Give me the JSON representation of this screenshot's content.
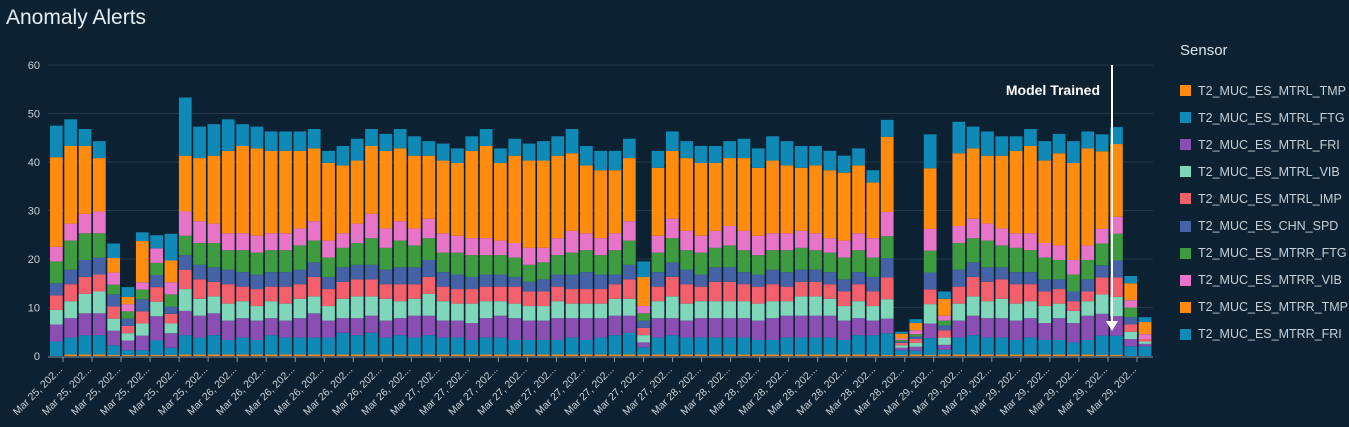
{
  "title": "Anomaly Alerts",
  "chart_data": {
    "type": "bar",
    "stacked": true,
    "title": "Anomaly Alerts",
    "xlabel": "",
    "ylabel": "",
    "ylim": [
      0,
      60
    ],
    "yticks": [
      "0",
      "10",
      "20",
      "30",
      "40",
      "50",
      "60"
    ],
    "grid": true,
    "legend_title": "Sensor",
    "legend_position": "right",
    "annotation": "Model Trained",
    "annotation_bar_index": 74,
    "xtick_labels": [
      "Mar 25, 202...",
      "Mar 25, 202...",
      "Mar 25, 202...",
      "Mar 25, 202...",
      "Mar 25, 202...",
      "Mar 25, 202...",
      "Mar 26, 202...",
      "Mar 26, 202...",
      "Mar 26, 202...",
      "Mar 26, 202...",
      "Mar 26, 202...",
      "Mar 26, 202...",
      "Mar 26, 202...",
      "Mar 27, 202...",
      "Mar 27, 202...",
      "Mar 27, 202...",
      "Mar 27, 202...",
      "Mar 27, 202...",
      "Mar 27, 202...",
      "Mar 27, 202...",
      "Mar 27, 202...",
      "Mar 27, 202...",
      "Mar 28, 202...",
      "Mar 28, 202...",
      "Mar 28, 202...",
      "Mar 28, 202...",
      "Mar 28, 202...",
      "Mar 28, 202...",
      "Mar 28, 202...",
      "Mar 28, 202...",
      "Mar 29, 202...",
      "Mar 29, 202...",
      "Mar 29, 202...",
      "Mar 29, 202...",
      "Mar 29, 202...",
      "Mar 29, 202...",
      "Mar 29, 202...",
      "Mar 29, 202..."
    ],
    "series_order_bottom_to_top": [
      "T2_MUC_ES_MTRL_TMP",
      "T2_MUC_ES_MTRR_FRI",
      "T2_MUC_ES_MTRL_FRI",
      "T2_MUC_ES_MTRL_VIB",
      "T2_MUC_ES_MTRL_IMP",
      "T2_MUC_ES_CHN_SPD",
      "T2_MUC_ES_MTRR_FTG",
      "T2_MUC_ES_MTRR_VIB",
      "T2_MUC_ES_MTRR_TMP",
      "T2_MUC_ES_MTRL_FTG"
    ],
    "legend": [
      {
        "name": "T2_MUC_ES_MTRL_TMP",
        "color": "#ff8c0f"
      },
      {
        "name": "T2_MUC_ES_MTRL_FTG",
        "color": "#0f89b5"
      },
      {
        "name": "T2_MUC_ES_MTRL_FRI",
        "color": "#8b4fb3"
      },
      {
        "name": "T2_MUC_ES_MTRL_VIB",
        "color": "#7fd6b9"
      },
      {
        "name": "T2_MUC_ES_MTRL_IMP",
        "color": "#f45f6c"
      },
      {
        "name": "T2_MUC_ES_CHN_SPD",
        "color": "#4462a5"
      },
      {
        "name": "T2_MUC_ES_MTRR_FTG",
        "color": "#3e9b3f"
      },
      {
        "name": "T2_MUC_ES_MTRR_VIB",
        "color": "#e774c6"
      },
      {
        "name": "T2_MUC_ES_MTRR_TMP",
        "color": "#ff8c0f"
      },
      {
        "name": "T2_MUC_ES_MTRR_FRI",
        "color": "#0f89b5"
      }
    ],
    "series": [
      {
        "name": "T2_MUC_ES_MTRL_TMP",
        "values": [
          0,
          0.3,
          0.3,
          0.3,
          0.2,
          0.2,
          0.2,
          0.2,
          0.2,
          0.3,
          0.3,
          0.3,
          0.3,
          0.3,
          0.3,
          0.3,
          0.3,
          0.3,
          0.3,
          0.3,
          0.3,
          0.3,
          0.3,
          0.3,
          0.3,
          0.3,
          0.3,
          0.3,
          0.3,
          0.3,
          0.3,
          0.3,
          0.3,
          0.3,
          0.3,
          0.3,
          0.3,
          0.3,
          0.3,
          0.3,
          0.3,
          0.3,
          0.3,
          0.3,
          0.3,
          0.3,
          0.3,
          0.3,
          0.3,
          0.3,
          0.3,
          0.3,
          0.3,
          0.3,
          0.3,
          0.3,
          0.3,
          0.3,
          0.2,
          0.2,
          0.3,
          0.2,
          0.3,
          0.3,
          0.3,
          0.3,
          0.3,
          0.3,
          0.3,
          0.3,
          0.3,
          0.3,
          0.3,
          0.2,
          0.2,
          0,
          0
        ]
      },
      {
        "name": "T2_MUC_ES_MTRR_FRI",
        "values": [
          3,
          3.5,
          4,
          4,
          2,
          1,
          1,
          3,
          1.5,
          4,
          3.5,
          4,
          3,
          3.5,
          3,
          4,
          3.5,
          3.5,
          3.5,
          3.5,
          4.5,
          4,
          4.5,
          3.5,
          4,
          3.5,
          4,
          3.5,
          3.5,
          3,
          3.5,
          3.5,
          3,
          3,
          3,
          3,
          3.5,
          3,
          3.5,
          4,
          4.5,
          1.5,
          3.5,
          4,
          3.5,
          3.5,
          3.5,
          3.5,
          3.5,
          3,
          3,
          3.5,
          3.5,
          3.5,
          3.5,
          3,
          4,
          4,
          4.5,
          1,
          0.8,
          3.5,
          1,
          3.5,
          4,
          3.5,
          3.5,
          3,
          3.5,
          3,
          3,
          2.5,
          3,
          4,
          4,
          2,
          2
        ]
      },
      {
        "name": "T2_MUC_ES_MTRL_FRI",
        "values": [
          3.5,
          4,
          4.5,
          4.5,
          3,
          2,
          3,
          5,
          3,
          5,
          4.5,
          4.5,
          4,
          4,
          4,
          3.5,
          3.5,
          4,
          5,
          3.5,
          3,
          3.5,
          3.5,
          3.5,
          3.5,
          4.5,
          4,
          3.5,
          3.5,
          3.5,
          4,
          4.5,
          4.5,
          4,
          4,
          4.5,
          4,
          4.5,
          4,
          4,
          3.5,
          1,
          4,
          3.5,
          3.5,
          4,
          4,
          4,
          4,
          4,
          4.5,
          4.5,
          4.5,
          4.5,
          4.5,
          4,
          3.5,
          3,
          3,
          0.5,
          0.8,
          3,
          1,
          3.5,
          4,
          4,
          4,
          4,
          4,
          3.5,
          4.5,
          4,
          5,
          4.5,
          4,
          1.5,
          0.5
        ]
      },
      {
        "name": "T2_MUC_ES_MTRL_VIB",
        "values": [
          3,
          3.5,
          4,
          4.5,
          2.5,
          1.5,
          2.5,
          3,
          2,
          4.5,
          3.5,
          3.5,
          3.5,
          3.5,
          3,
          3.5,
          3.5,
          4,
          3.5,
          3,
          4,
          4.5,
          4,
          4.5,
          3.5,
          3.5,
          4.5,
          4,
          3.5,
          4,
          3.5,
          3,
          3,
          3,
          3,
          3.5,
          3,
          3,
          3,
          3.5,
          3.5,
          1.5,
          3.5,
          4.5,
          3.5,
          3.5,
          3.5,
          3.5,
          3.5,
          3.5,
          3.5,
          3,
          4,
          4,
          3.5,
          3,
          3.5,
          3,
          4,
          0.5,
          0.8,
          4,
          1.5,
          3.5,
          4,
          3.5,
          4,
          3.5,
          3.5,
          3.5,
          3,
          2.5,
          3,
          4,
          4,
          1.5,
          0.5
        ]
      },
      {
        "name": "T2_MUC_ES_MTRL_IMP",
        "values": [
          3,
          3.5,
          3.5,
          3.5,
          2.5,
          1.5,
          2.5,
          3,
          2,
          4,
          4,
          3,
          4,
          3,
          3.5,
          3,
          3.5,
          3,
          4,
          3.5,
          3.5,
          3.5,
          3.5,
          3,
          3.5,
          3,
          3.5,
          3,
          3,
          3,
          3,
          3,
          3.5,
          3,
          3,
          3,
          3,
          3,
          3,
          3,
          4,
          1.5,
          3,
          4,
          4,
          3,
          4,
          4,
          3.5,
          3.5,
          3.5,
          3,
          3,
          3,
          3,
          3,
          3.5,
          3,
          4.5,
          0.5,
          0.8,
          3,
          1.5,
          3.5,
          4,
          4,
          4,
          4,
          3.5,
          3,
          3,
          2,
          2,
          3.5,
          4,
          1.5,
          0.5
        ]
      },
      {
        "name": "T2_MUC_ES_CHN_SPD",
        "values": [
          2.5,
          3,
          3.5,
          3.5,
          2.5,
          1.5,
          2.5,
          2.5,
          1.5,
          3,
          3,
          3,
          3,
          3,
          3,
          3,
          3,
          3,
          3,
          2.5,
          3,
          3,
          3,
          3,
          3.5,
          3.5,
          3.5,
          3,
          3,
          2.5,
          2.5,
          2.5,
          2,
          2,
          2.5,
          2.5,
          3,
          3.5,
          3,
          2,
          3,
          1.5,
          3,
          3,
          3,
          2.5,
          3,
          3,
          2.5,
          2.5,
          3,
          3,
          2.5,
          2.5,
          2.5,
          2.5,
          2.5,
          3,
          4,
          0.3,
          0.5,
          3.5,
          1,
          3.5,
          3,
          3,
          2.5,
          2.5,
          2.5,
          2.5,
          2,
          2,
          2.5,
          2.5,
          3.5,
          1.5,
          0
        ]
      },
      {
        "name": "T2_MUC_ES_MTRR_FTG",
        "values": [
          4.5,
          6,
          5.5,
          5,
          2,
          1.5,
          2,
          2.5,
          2.5,
          4,
          4.5,
          5,
          4,
          4.5,
          4.5,
          4.5,
          4.5,
          5,
          4.5,
          4,
          4,
          4.5,
          5.5,
          4.5,
          5.5,
          4.5,
          4.5,
          4,
          4.5,
          4.5,
          4,
          4,
          4,
          3.5,
          3.5,
          4,
          4.5,
          4.5,
          4,
          5,
          5,
          1.5,
          4,
          5,
          4,
          4.5,
          4,
          4.5,
          4.5,
          4,
          4,
          4.5,
          4.5,
          4,
          4,
          4.5,
          4.5,
          4,
          4.5,
          0.3,
          0.5,
          4.5,
          1,
          5.5,
          5,
          5.5,
          4.5,
          5,
          4.5,
          4.5,
          4,
          3.5,
          4,
          4.5,
          5.5,
          2,
          0
        ]
      },
      {
        "name": "T2_MUC_ES_MTRR_VIB",
        "values": [
          3,
          3.5,
          4,
          4.5,
          2.5,
          1.5,
          1.5,
          3,
          2.5,
          5,
          4.5,
          4,
          3.5,
          3.5,
          3.5,
          3.5,
          3.5,
          3.5,
          4,
          3.5,
          3,
          4,
          5,
          4,
          4,
          3.5,
          4,
          4,
          3.5,
          3.5,
          3.5,
          3,
          3,
          3.5,
          3,
          3.5,
          4.5,
          3.5,
          3.5,
          3.5,
          4,
          1.5,
          3.5,
          4,
          4,
          3.5,
          3.5,
          4,
          4,
          4,
          3.5,
          3.5,
          3.5,
          3.5,
          3,
          3.5,
          3.5,
          4,
          5,
          0.3,
          0.8,
          4.5,
          1,
          3.5,
          4,
          3.5,
          3.5,
          3,
          3.5,
          3,
          3,
          3,
          3,
          3,
          3.5,
          1.5,
          1
        ]
      },
      {
        "name": "T2_MUC_ES_MTRR_TMP",
        "values": [
          18.5,
          16,
          14,
          11,
          3,
          1.5,
          8.5,
          0,
          4.5,
          11.5,
          13,
          14,
          17,
          18,
          18,
          17,
          17,
          16,
          15,
          16,
          14,
          13,
          14,
          16,
          15,
          15,
          13,
          15,
          15,
          18,
          19,
          16,
          18,
          18,
          18,
          17,
          16,
          14,
          14,
          13,
          13,
          6,
          14,
          14,
          15,
          15,
          14,
          14,
          15,
          14,
          15,
          14,
          13,
          14,
          14,
          14,
          14,
          11.5,
          15.5,
          1,
          1.5,
          12.5,
          3.5,
          15,
          14.5,
          14,
          15,
          17,
          18,
          17,
          19,
          20,
          20,
          16,
          15,
          3.5,
          2.5
        ]
      },
      {
        "name": "T2_MUC_ES_MTRL_FTG",
        "values": [
          6.5,
          5.5,
          3.5,
          3.5,
          3,
          2,
          1.8,
          2.7,
          5.5,
          12,
          6.5,
          6.5,
          6.5,
          4.5,
          4.5,
          4,
          4,
          4,
          4,
          2.5,
          4,
          4.5,
          3.5,
          3.5,
          4,
          4,
          3,
          3.5,
          3,
          3,
          3.5,
          3,
          3.5,
          3.5,
          4,
          4,
          5,
          4,
          4,
          4,
          4,
          3.2,
          3.5,
          4,
          3.5,
          3.5,
          3.5,
          3.5,
          4,
          4,
          5,
          5,
          4.5,
          4,
          4,
          3.5,
          3.5,
          2.5,
          3.5,
          0.4,
          0.8,
          7,
          1.5,
          6.5,
          4.5,
          5,
          4,
          3,
          3.5,
          4,
          4,
          4.5,
          3.5,
          3.5,
          3.5,
          1.5,
          1
        ]
      }
    ]
  }
}
